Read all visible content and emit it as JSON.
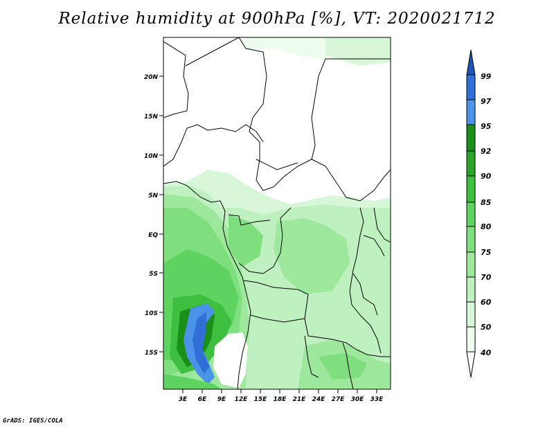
{
  "title": "Relative humidity at 900hPa [%], VT: 2020021712",
  "footer": "GrADS: IGES/COLA",
  "map": {
    "lat_ticks": [
      "20N",
      "15N",
      "10N",
      "5N",
      "EQ",
      "5S",
      "10S",
      "15S"
    ],
    "lon_ticks": [
      "3E",
      "6E",
      "9E",
      "12E",
      "15E",
      "18E",
      "21E",
      "24E",
      "27E",
      "30E",
      "33E"
    ]
  },
  "colorbar": {
    "levels": [
      "99",
      "97",
      "95",
      "92",
      "90",
      "85",
      "80",
      "75",
      "70",
      "60",
      "50",
      "40"
    ],
    "colors": {
      "above_99": "#1c54b8",
      "97_99": "#2f6fd6",
      "95_97": "#4b93e8",
      "92_95": "#1a8f1a",
      "90_92": "#2aa52a",
      "85_90": "#3fbf3f",
      "80_85": "#5fd35f",
      "75_80": "#7fdf7f",
      "70_75": "#9ee89e",
      "60_70": "#bff0bf",
      "50_60": "#d8f6d8",
      "40_50": "#eefcee",
      "below_40": "#ffffff"
    }
  }
}
